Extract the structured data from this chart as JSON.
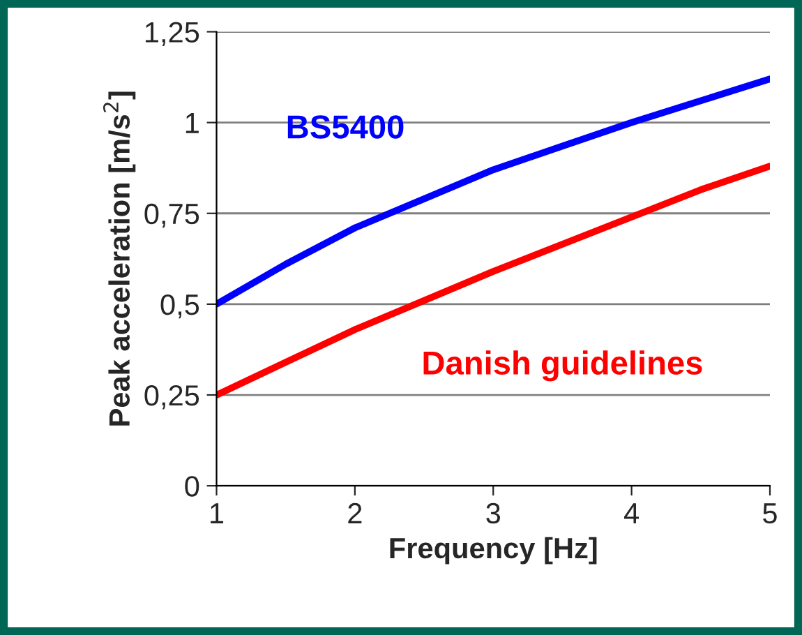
{
  "chart_data": {
    "type": "line",
    "xlabel": "Frequency [Hz]",
    "ylabel": "Peak acceleration [m/s$^{2}$]",
    "x": [
      1,
      1.5,
      2,
      2.5,
      3,
      3.5,
      4,
      4.5,
      5
    ],
    "series": [
      {
        "name": "BS5400",
        "color": "#0000ff",
        "values": [
          0.5,
          0.61,
          0.71,
          0.79,
          0.87,
          0.935,
          1.0,
          1.06,
          1.12
        ]
      },
      {
        "name": "Danish guidelines",
        "color": "#ff0000",
        "values": [
          0.25,
          0.34,
          0.43,
          0.51,
          0.59,
          0.665,
          0.74,
          0.815,
          0.88
        ]
      }
    ],
    "xlim": [
      1,
      5
    ],
    "ylim": [
      0,
      1.25
    ],
    "xticks": [
      1,
      2,
      3,
      4,
      5
    ],
    "yticks": [
      0,
      {
        "value": 0.25,
        "label": "0,25"
      },
      {
        "value": 0.5,
        "label": "0,5"
      },
      {
        "value": 0.75,
        "label": "0,75"
      },
      1,
      {
        "value": 1.25,
        "label": "1,25"
      }
    ],
    "grid": "y",
    "marker": "none",
    "line_style": "solid",
    "legend": false
  }
}
